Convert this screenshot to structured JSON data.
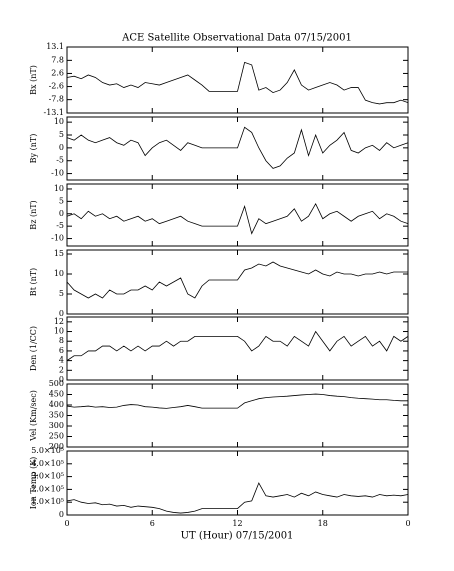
{
  "chart_data": [
    {
      "type": "line",
      "title": "ACE Satellite Observational Data  07/15/2001",
      "ylabel": "Bx (nT)",
      "color": "#000000",
      "x": [
        0,
        0.5,
        1,
        1.5,
        2,
        2.5,
        3,
        3.5,
        4,
        4.5,
        5,
        5.5,
        6,
        6.5,
        7,
        7.5,
        8,
        8.5,
        9,
        9.5,
        10,
        10.5,
        11,
        11.5,
        12,
        12.5,
        13,
        13.5,
        14,
        14.5,
        15,
        15.5,
        16,
        16.5,
        17,
        17.5,
        18,
        18.5,
        19,
        19.5,
        20,
        20.5,
        21,
        21.5,
        22,
        22.5,
        23,
        23.5,
        24
      ],
      "values": [
        1,
        1.5,
        0.5,
        2,
        1,
        -1,
        -2,
        -1.5,
        -3,
        -2,
        -3,
        -1,
        -1.5,
        -2,
        -1,
        0,
        1,
        2,
        0,
        -2,
        -4.5,
        -4.5,
        -4.5,
        -4.5,
        -4.5,
        7,
        6,
        -4,
        -3,
        -5,
        -4,
        -1,
        4,
        -2,
        -4,
        -3,
        -2,
        -1,
        -2,
        -4,
        -3,
        -3,
        -8,
        -9,
        -9.5,
        -9,
        -9,
        -8,
        -9
      ],
      "xlim": [
        0,
        24
      ],
      "xticks": [
        0,
        6,
        12,
        18,
        24
      ],
      "ylim": [
        -13.1,
        13.1
      ],
      "yticks": [
        -13.1,
        -7.8,
        -2.6,
        2.6,
        7.8,
        13.1
      ]
    },
    {
      "type": "line",
      "ylabel": "By (nT)",
      "color": "#000000",
      "x": [
        0,
        0.5,
        1,
        1.5,
        2,
        2.5,
        3,
        3.5,
        4,
        4.5,
        5,
        5.5,
        6,
        6.5,
        7,
        7.5,
        8,
        8.5,
        9,
        9.5,
        10,
        10.5,
        11,
        11.5,
        12,
        12.5,
        13,
        13.5,
        14,
        14.5,
        15,
        15.5,
        16,
        16.5,
        17,
        17.5,
        18,
        18.5,
        19,
        19.5,
        20,
        20.5,
        21,
        21.5,
        22,
        22.5,
        23,
        23.5,
        24
      ],
      "values": [
        4,
        3,
        5,
        3,
        2,
        3,
        4,
        2,
        1,
        3,
        2,
        -3,
        0,
        2,
        3,
        1,
        -1,
        2,
        1,
        0,
        0,
        0,
        0,
        0,
        0,
        8,
        6,
        0,
        -5,
        -8,
        -7,
        -4,
        -2,
        7,
        -3,
        5,
        -2,
        1,
        3,
        6,
        -1,
        -2,
        0,
        1,
        -1,
        2,
        0,
        1,
        2
      ],
      "xlim": [
        0,
        24
      ],
      "xticks": [
        0,
        6,
        12,
        18,
        24
      ],
      "ylim": [
        -12.5,
        12
      ],
      "yticks": [
        -10,
        -5,
        0,
        5,
        10
      ]
    },
    {
      "type": "line",
      "ylabel": "Bz (nT)",
      "color": "#000000",
      "x": [
        0,
        0.5,
        1,
        1.5,
        2,
        2.5,
        3,
        3.5,
        4,
        4.5,
        5,
        5.5,
        6,
        6.5,
        7,
        7.5,
        8,
        8.5,
        9,
        9.5,
        10,
        10.5,
        11,
        11.5,
        12,
        12.5,
        13,
        13.5,
        14,
        14.5,
        15,
        15.5,
        16,
        16.5,
        17,
        17.5,
        18,
        18.5,
        19,
        19.5,
        20,
        20.5,
        21,
        21.5,
        22,
        22.5,
        23,
        23.5,
        24
      ],
      "values": [
        -1,
        0,
        -2,
        1,
        -1,
        0,
        -2,
        -1,
        -3,
        -2,
        -1,
        -3,
        -2,
        -4,
        -3,
        -2,
        -1,
        -3,
        -4,
        -5,
        -5,
        -5,
        -5,
        -5,
        -5,
        3,
        -8,
        -2,
        -4,
        -3,
        -2,
        -1,
        2,
        -3,
        -1,
        4,
        -2,
        0,
        1,
        -1,
        -3,
        -1,
        0,
        1,
        -2,
        0,
        -1,
        -3,
        -4
      ],
      "xlim": [
        0,
        24
      ],
      "xticks": [
        0,
        6,
        12,
        18,
        24
      ],
      "ylim": [
        -13,
        12
      ],
      "yticks": [
        -10,
        -5,
        0,
        5,
        10
      ]
    },
    {
      "type": "line",
      "ylabel": "Bt (nT)",
      "color": "#000000",
      "x": [
        0,
        0.5,
        1,
        1.5,
        2,
        2.5,
        3,
        3.5,
        4,
        4.5,
        5,
        5.5,
        6,
        6.5,
        7,
        7.5,
        8,
        8.5,
        9,
        9.5,
        10,
        10.5,
        11,
        11.5,
        12,
        12.5,
        13,
        13.5,
        14,
        14.5,
        15,
        15.5,
        16,
        16.5,
        17,
        17.5,
        18,
        18.5,
        19,
        19.5,
        20,
        20.5,
        21,
        21.5,
        22,
        22.5,
        23,
        23.5,
        24
      ],
      "values": [
        8,
        6,
        5,
        4,
        5,
        4,
        6,
        5,
        5,
        6,
        6,
        7,
        6,
        8,
        7,
        8,
        9,
        5,
        4,
        7,
        8.5,
        8.5,
        8.5,
        8.5,
        8.5,
        11,
        11.5,
        12.5,
        12,
        13,
        12,
        11.5,
        11,
        10.5,
        10,
        11,
        10,
        9.5,
        10.5,
        10,
        10,
        9.5,
        10,
        10,
        10.5,
        10,
        10.5,
        10.5,
        10.5
      ],
      "xlim": [
        0,
        24
      ],
      "xticks": [
        0,
        6,
        12,
        18,
        24
      ],
      "ylim": [
        0,
        16
      ],
      "yticks": [
        0,
        5,
        10,
        15
      ]
    },
    {
      "type": "line",
      "ylabel": "Den (1/CC)",
      "color": "#000000",
      "x": [
        0,
        0.5,
        1,
        1.5,
        2,
        2.5,
        3,
        3.5,
        4,
        4.5,
        5,
        5.5,
        6,
        6.5,
        7,
        7.5,
        8,
        8.5,
        9,
        9.5,
        10,
        10.5,
        11,
        11.5,
        12,
        12.5,
        13,
        13.5,
        14,
        14.5,
        15,
        15.5,
        16,
        16.5,
        17,
        17.5,
        18,
        18.5,
        19,
        19.5,
        20,
        20.5,
        21,
        21.5,
        22,
        22.5,
        23,
        23.5,
        24
      ],
      "values": [
        4,
        5,
        5,
        6,
        6,
        7,
        7,
        6,
        7,
        6,
        7,
        6,
        7,
        7,
        8,
        7,
        8,
        8,
        9,
        9,
        9,
        9,
        9,
        9,
        9,
        8,
        6,
        7,
        9,
        8,
        8,
        7,
        9,
        8,
        7,
        10,
        8,
        6,
        8,
        9,
        7,
        8,
        9,
        7,
        8,
        6,
        9,
        8,
        9
      ],
      "xlim": [
        0,
        24
      ],
      "xticks": [
        0,
        6,
        12,
        18,
        24
      ],
      "ylim": [
        0,
        13
      ],
      "yticks": [
        0,
        2,
        4,
        6,
        8,
        10,
        12
      ]
    },
    {
      "type": "line",
      "ylabel": "Vel (Km/sec)",
      "color": "#000000",
      "x": [
        0,
        0.5,
        1,
        1.5,
        2,
        2.5,
        3,
        3.5,
        4,
        4.5,
        5,
        5.5,
        6,
        6.5,
        7,
        7.5,
        8,
        8.5,
        9,
        9.5,
        10,
        10.5,
        11,
        11.5,
        12,
        12.5,
        13,
        13.5,
        14,
        14.5,
        15,
        15.5,
        16,
        16.5,
        17,
        17.5,
        18,
        18.5,
        19,
        19.5,
        20,
        20.5,
        21,
        21.5,
        22,
        22.5,
        23,
        23.5,
        24
      ],
      "values": [
        395,
        390,
        392,
        395,
        390,
        392,
        388,
        390,
        398,
        402,
        400,
        392,
        390,
        386,
        384,
        388,
        392,
        398,
        392,
        385,
        385,
        385,
        385,
        385,
        385,
        410,
        420,
        430,
        435,
        438,
        440,
        442,
        445,
        448,
        450,
        452,
        450,
        445,
        442,
        440,
        435,
        432,
        430,
        428,
        425,
        425,
        422,
        420,
        420
      ],
      "xlim": [
        0,
        24
      ],
      "xticks": [
        0,
        6,
        12,
        18,
        24
      ],
      "ylim": [
        200,
        500
      ],
      "yticks": [
        200,
        250,
        300,
        350,
        400,
        450,
        500
      ]
    },
    {
      "type": "line",
      "ylabel": "Ion Temp (K)",
      "xlabel": "UT (Hour)  07/15/2001",
      "color": "#000000",
      "x": [
        0,
        0.5,
        1,
        1.5,
        2,
        2.5,
        3,
        3.5,
        4,
        4.5,
        5,
        5.5,
        6,
        6.5,
        7,
        7.5,
        8,
        8.5,
        9,
        9.5,
        10,
        10.5,
        11,
        11.5,
        12,
        12.5,
        13,
        13.5,
        14,
        14.5,
        15,
        15.5,
        16,
        16.5,
        17,
        17.5,
        18,
        18.5,
        19,
        19.5,
        20,
        20.5,
        21,
        21.5,
        22,
        22.5,
        23,
        23.5,
        24
      ],
      "values": [
        110000,
        120000,
        100000,
        90000,
        95000,
        80000,
        85000,
        70000,
        75000,
        60000,
        70000,
        65000,
        60000,
        50000,
        30000,
        20000,
        15000,
        20000,
        30000,
        50000,
        50000,
        50000,
        50000,
        50000,
        50000,
        100000,
        110000,
        250000,
        150000,
        140000,
        150000,
        160000,
        140000,
        170000,
        150000,
        180000,
        160000,
        150000,
        140000,
        160000,
        150000,
        145000,
        150000,
        140000,
        160000,
        150000,
        155000,
        150000,
        160000
      ],
      "xlim": [
        0,
        24
      ],
      "xticks": [
        0,
        6,
        12,
        18,
        {
          "value": 24,
          "label": "0"
        }
      ],
      "ylim": [
        0,
        500000
      ],
      "yticks": [
        0,
        {
          "value": 100000,
          "label": "1.0×10⁵"
        },
        {
          "value": 200000,
          "label": "2.0×10⁵"
        },
        {
          "value": 300000,
          "label": "3.0×10⁵"
        },
        {
          "value": 400000,
          "label": "4.0×10⁵"
        },
        {
          "value": 500000,
          "label": "5.0×10⁵"
        }
      ]
    }
  ]
}
